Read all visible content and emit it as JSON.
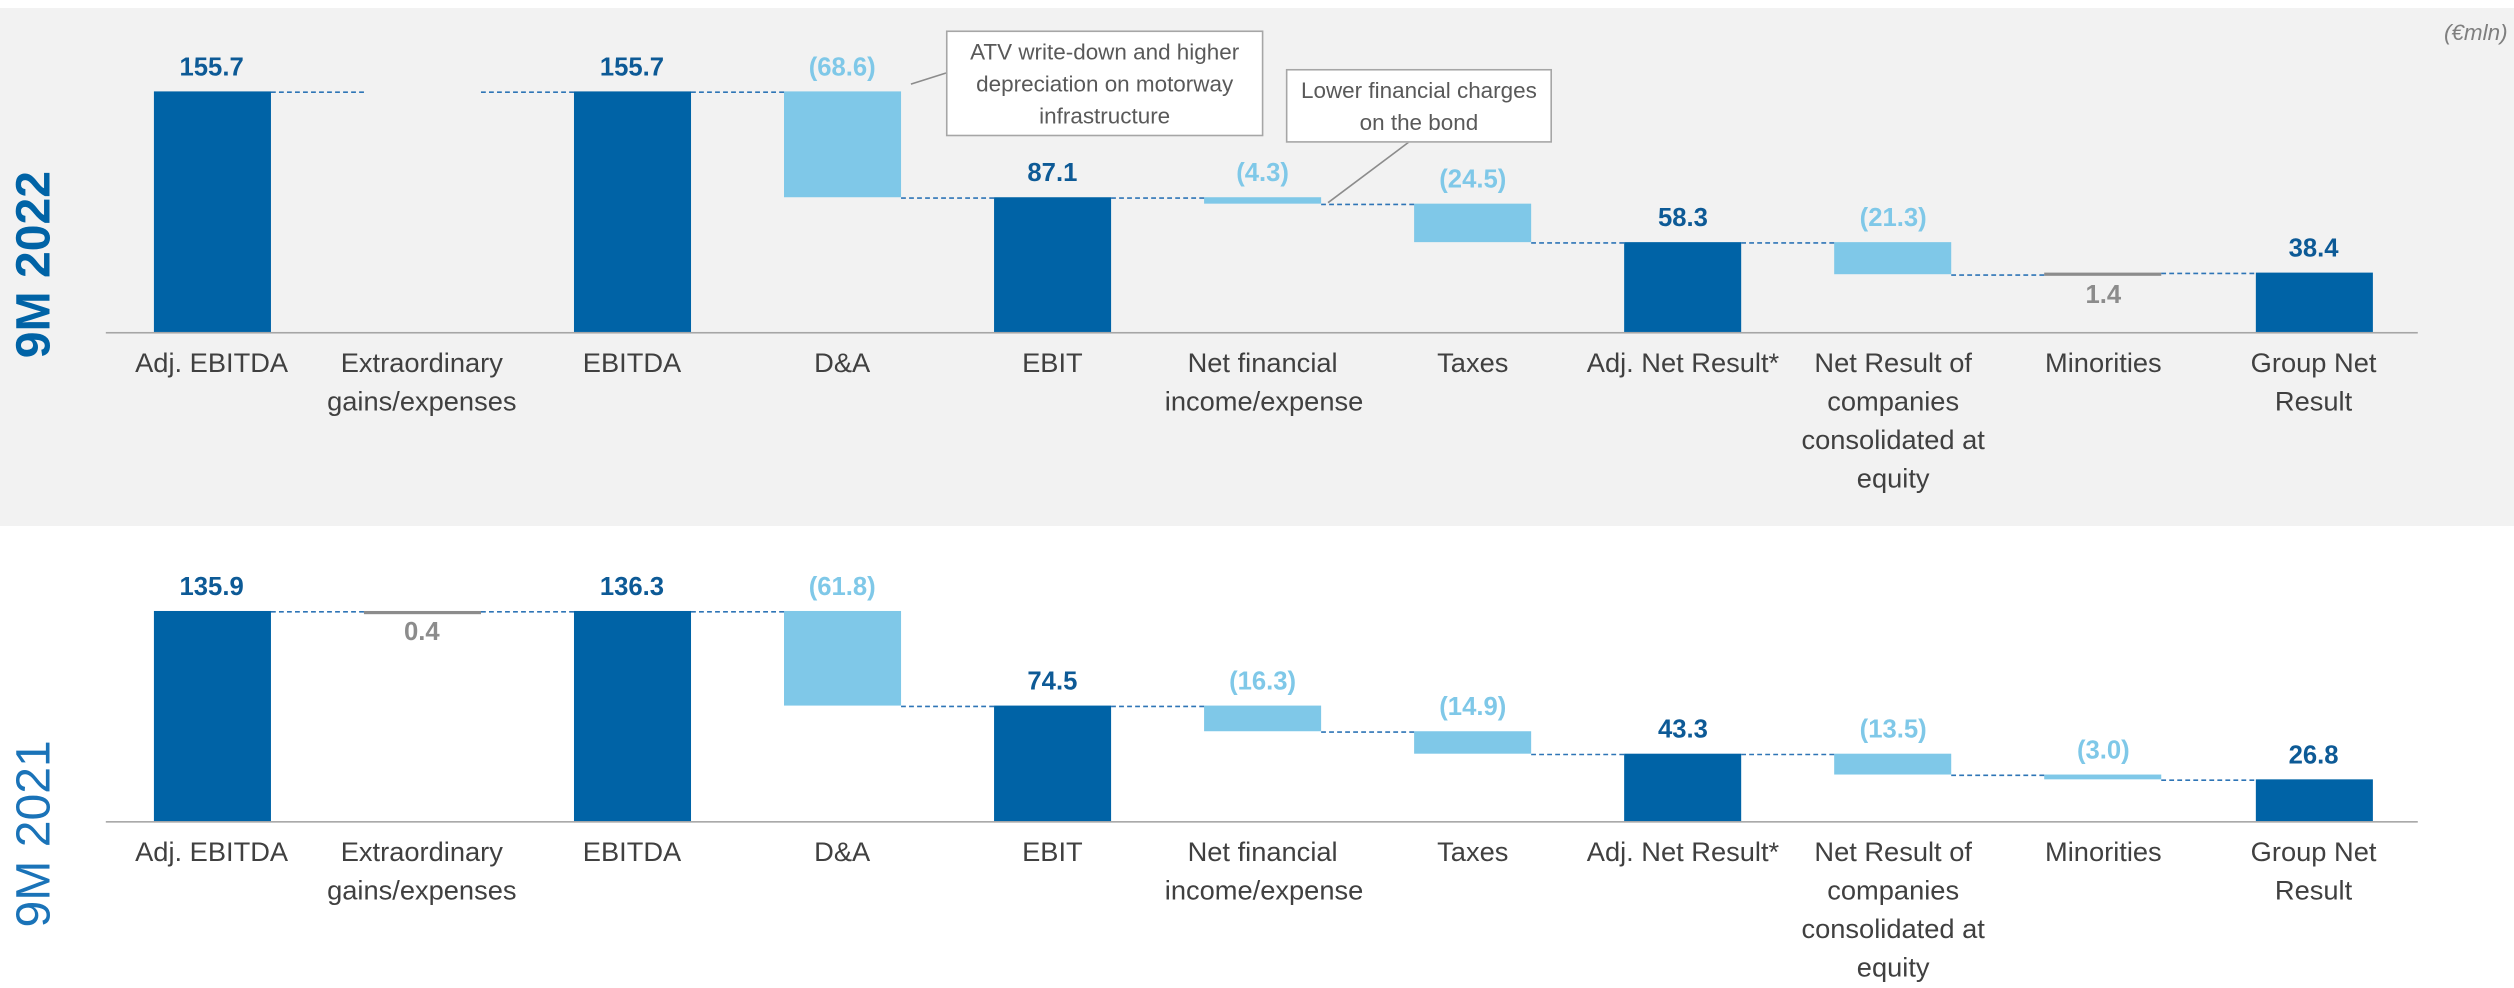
{
  "unit": "(€mln)",
  "chart_data": [
    {
      "type": "waterfall",
      "title": "9M 2022",
      "categories": [
        "Adj. EBITDA",
        "Extraordinary gains/expenses",
        "EBITDA",
        "D&A",
        "EBIT",
        "Net financial income/expense",
        "Taxes",
        "Adj. Net Result*",
        "Net Result of companies consolidated at equity",
        "Minorities",
        "Group Net Result"
      ],
      "measure": [
        "total",
        "relative",
        "total",
        "relative",
        "total",
        "relative",
        "relative",
        "total",
        "relative",
        "relative",
        "total"
      ],
      "values": [
        155.7,
        null,
        155.7,
        -68.6,
        87.1,
        -4.3,
        -24.5,
        58.3,
        -21.3,
        1.4,
        38.4
      ],
      "value_labels": [
        "155.7",
        null,
        "155.7",
        "(68.6)",
        "87.1",
        "(4.3)",
        "(24.5)",
        "58.3",
        "(21.3)",
        "1.4",
        "38.4"
      ],
      "colors": {
        "total": "#0063a6",
        "decrease": "#7fc8e8",
        "increase": "#8c8c8c"
      },
      "annotations": [
        "ATV write-down and higher depreciation on motorway infrastructure",
        "Lower financial charges on the bond"
      ]
    },
    {
      "type": "waterfall",
      "title": "9M 2021",
      "categories": [
        "Adj. EBITDA",
        "Extraordinary gains/expenses",
        "EBITDA",
        "D&A",
        "EBIT",
        "Net financial income/expense",
        "Taxes",
        "Adj. Net Result*",
        "Net Result of companies consolidated at equity",
        "Minorities",
        "Group Net Result"
      ],
      "measure": [
        "total",
        "relative",
        "total",
        "relative",
        "total",
        "relative",
        "relative",
        "total",
        "relative",
        "relative",
        "total"
      ],
      "values": [
        135.9,
        0.4,
        136.3,
        -61.8,
        74.5,
        -16.3,
        -14.9,
        43.3,
        -13.5,
        -3.0,
        26.8
      ],
      "value_labels": [
        "135.9",
        "0.4",
        "136.3",
        "(61.8)",
        "74.5",
        "(16.3)",
        "(14.9)",
        "43.3",
        "(13.5)",
        "(3.0)",
        "26.8"
      ],
      "colors": {
        "total": "#0063a6",
        "decrease": "#7fc8e8",
        "increase": "#8c8c8c"
      }
    }
  ]
}
